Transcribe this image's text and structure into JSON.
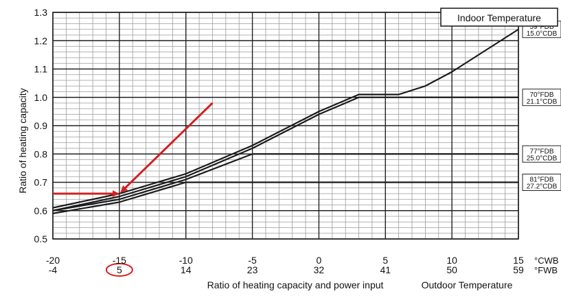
{
  "chart_data": {
    "type": "line",
    "title": "",
    "ylabel": "Ratio of heating capacity",
    "xlabel": "Ratio of heating capacity and power input",
    "xlabel_right": "Outdoor Temperature",
    "legend_title": "Indoor Temperature",
    "xlim": [
      -20,
      15
    ],
    "ylim": [
      0.5,
      1.3
    ],
    "grid": true,
    "y_ticks": [
      "0.5",
      "0.6",
      "0.7",
      "0.8",
      "0.9",
      "1.0",
      "1.1",
      "1.2",
      "1.3"
    ],
    "x_ticks_cwb": [
      "-20",
      "-15",
      "-10",
      "-5",
      "0",
      "5",
      "10",
      "15"
    ],
    "x_ticks_fwb": [
      "-4",
      "5",
      "14",
      "23",
      "32",
      "41",
      "50",
      "59"
    ],
    "x_unit_cwb": "°CWB",
    "x_unit_fwb": "°FWB",
    "series": [
      {
        "name": "59°FDB 15.0°CDB",
        "x": [
          -20,
          -15,
          -10,
          -5,
          0,
          3,
          6,
          8,
          10,
          12,
          15
        ],
        "y": [
          0.61,
          0.66,
          0.73,
          0.83,
          0.95,
          1.01,
          1.01,
          1.04,
          1.09,
          1.15,
          1.24
        ]
      },
      {
        "name": "70°FDB 21.1°CDB",
        "x": [
          -20,
          -15,
          -10,
          -5,
          0,
          3,
          15
        ],
        "y": [
          0.6,
          0.65,
          0.72,
          0.82,
          0.94,
          1.0,
          1.0
        ]
      },
      {
        "name": "77°FDB 25.0°CDB",
        "x": [
          -20,
          -15,
          -10,
          -5,
          -4,
          15
        ],
        "y": [
          0.6,
          0.64,
          0.71,
          0.8,
          0.8,
          0.8
        ]
      },
      {
        "name": "81°FDB 27.2°CDB",
        "x": [
          -20,
          -15,
          -10,
          15
        ],
        "y": [
          0.59,
          0.63,
          0.7,
          0.7
        ]
      }
    ],
    "right_labels": [
      {
        "series": "59°FDB 15.0°CDB",
        "y": 1.24,
        "line1": "59°FDB",
        "line2": "15.0°CDB"
      },
      {
        "series": "70°FDB 21.1°CDB",
        "y": 1.0,
        "line1": "70°FDB",
        "line2": "21.1°CDB"
      },
      {
        "series": "77°FDB 25.0°CDB",
        "y": 0.8,
        "line1": "77°FDB",
        "line2": "25.0°CDB"
      },
      {
        "series": "81°FDB 27.2°CDB",
        "y": 0.7,
        "line1": "81°FDB",
        "line2": "27.2°CDB"
      }
    ],
    "annotations": {
      "highlight_color": "#d32020",
      "horizontal_arrow": {
        "y": 0.66,
        "x_from": -20,
        "x_to": -15
      },
      "diagonal_arrow": {
        "from": [
          -8,
          0.98
        ],
        "to": [
          -15,
          0.66
        ]
      },
      "circled_tick": "5"
    }
  }
}
